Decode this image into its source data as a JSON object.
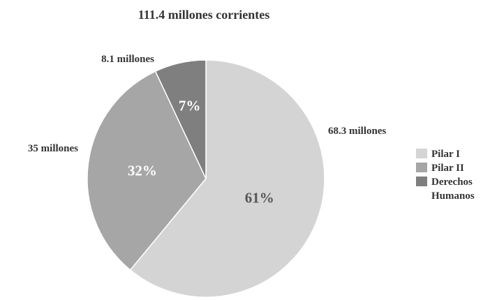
{
  "chart_data": {
    "type": "pie",
    "title": "111.4 millones corrientes",
    "categories": [
      "Pilar I",
      "Pilar II",
      "Derechos Humanos"
    ],
    "values": [
      61,
      32,
      7
    ],
    "value_labels": [
      "61%",
      "32%",
      "7%"
    ],
    "amount_labels": [
      "68.3 millones",
      "35 millones",
      "8.1 millones"
    ],
    "colors": [
      "#d4d4d4",
      "#a6a6a6",
      "#7f7f7f"
    ],
    "percent_label_colors": [
      "#555555",
      "#ffffff",
      "#ffffff"
    ],
    "legend": {
      "placement": "right",
      "entries": [
        {
          "lines": [
            "Pilar I"
          ]
        },
        {
          "lines": [
            "Pilar II"
          ]
        },
        {
          "lines": [
            "Derechos",
            "Humanos"
          ]
        }
      ]
    }
  }
}
